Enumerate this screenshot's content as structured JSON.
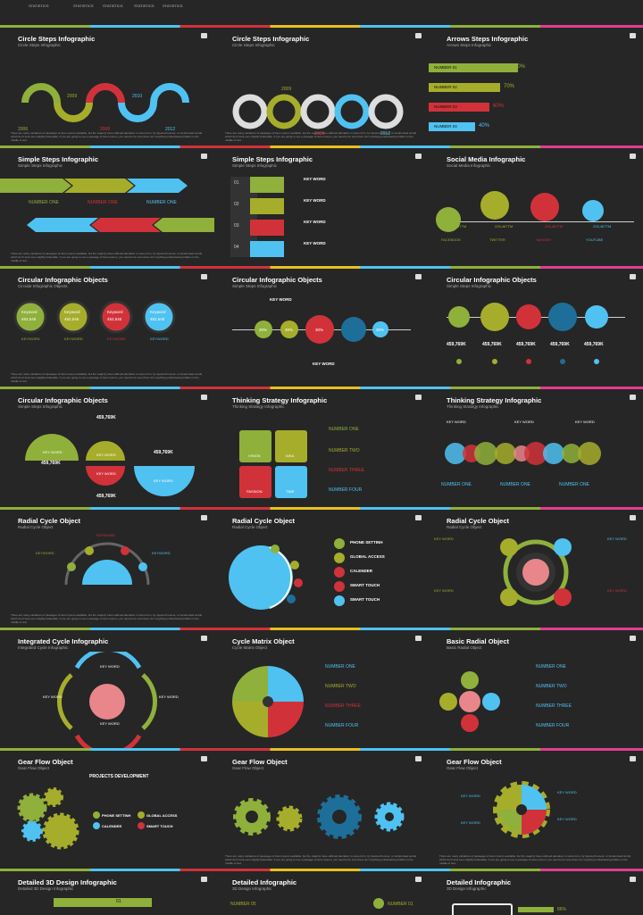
{
  "top": {
    "labels": [
      "STATISTICS",
      "STATISTICS",
      "STATISTICS",
      "STATISTICS",
      "STATISTICS"
    ]
  },
  "rows": [
    [
      {
        "title": "Circle Steps Infographic",
        "sub": "Circle Steps Infographic"
      },
      {
        "title": "Circle Steps Infographic",
        "sub": "Circle Steps Infographic"
      },
      {
        "title": "Arrows Steps Infographic",
        "sub": "Arrows Steps Infographic"
      }
    ],
    [
      {
        "title": "Simple Steps Infographic",
        "sub": "Simple Steps Infographic"
      },
      {
        "title": "Simple Steps Infographic",
        "sub": "Simple Steps Infographic"
      },
      {
        "title": "Social Media Infographic",
        "sub": "Social Media Infographic"
      }
    ],
    [
      {
        "title": "Circular Infographic Objects",
        "sub": "Circular Infographic Objects"
      },
      {
        "title": "Circular Infographic Objects",
        "sub": "Simple Steps Infographic"
      },
      {
        "title": "Circular Infographic Objects",
        "sub": "Simple Steps Infographic"
      }
    ],
    [
      {
        "title": "Circular Infographic Objects",
        "sub": "Simple Steps Infographic"
      },
      {
        "title": "Thinking Strategy Infographic",
        "sub": "Thinking Strategy Infographic"
      },
      {
        "title": "Thinking Strategy Infographic",
        "sub": "Thinking Strategy Infographic"
      }
    ],
    [
      {
        "title": "Radial Cycle Object",
        "sub": "Radial Cycle Object"
      },
      {
        "title": "Radial Cycle Object",
        "sub": "Radial Cycle Object"
      },
      {
        "title": "Radial Cycle Object",
        "sub": "Radial Cycle Object"
      }
    ],
    [
      {
        "title": "Integrated Cycle Infographic",
        "sub": "Integrated Cycle Infographic"
      },
      {
        "title": "Cycle Matrix Object",
        "sub": "Cycle Matrix Object"
      },
      {
        "title": "Basic Radial Object",
        "sub": "Basic Radial Object"
      }
    ],
    [
      {
        "title": "Gear Flow Object",
        "sub": "Gear Flow Object"
      },
      {
        "title": "Gear Flow Object",
        "sub": "Gear Flow Object"
      },
      {
        "title": "Gear Flow Object",
        "sub": "Gear Flow Object"
      }
    ],
    [
      {
        "title": "Detailed 3D Design Infographic",
        "sub": "Detailed 3D Design Infographic"
      },
      {
        "title": "Detailed Infographic",
        "sub": "3D Design Infographic"
      },
      {
        "title": "Detailed Infographic",
        "sub": "3D Design Infographic"
      }
    ]
  ],
  "text": {
    "years": [
      "2006",
      "2009",
      "2008",
      "2010",
      "2012"
    ],
    "statistics": "STATISTICS",
    "number_labels": [
      "NUMBER 01",
      "NUMBER 02",
      "NUMBER 03",
      "NUMBER 04"
    ],
    "percents": [
      "80%",
      "70%",
      "60%",
      "40%"
    ],
    "number_one": "NUMBER ONE",
    "number_two": "NUMBER TWO",
    "number_three": "NUMBER THREE",
    "number_four": "NUMBER FOUR",
    "key_word": "KEY WORD",
    "keyword": "KEYWORD",
    "keyword_cap": "Keyword",
    "kw_value": "452,545",
    "value_459": "459,769K",
    "value_459b": "459,769K",
    "social": [
      "FACEBOOK",
      "TWITTER",
      "YAHOOH",
      "YOUTUBE"
    ],
    "social_vals": [
      "226,467TM",
      "226,467TM",
      "226,467TM",
      "226,467TM"
    ],
    "quad": [
      "VISION",
      "IDEA",
      "PASSION",
      "TIME"
    ],
    "pcts30": [
      "30%",
      "30%",
      "30%",
      "30%"
    ],
    "radial_items": [
      "PHONE SETTINH",
      "GLOBAL ACCESS",
      "CALENDER",
      "SMART TOUCH",
      "SMART TOUCH"
    ],
    "gear_items": [
      "PROJECTS DEVELOPMENT",
      "PHONE SETTINH",
      "GLOBAL ACCESS",
      "CALENDER",
      "SMART TOUCH"
    ],
    "steps": [
      "01",
      "02",
      "03",
      "04"
    ],
    "detailed_nums": [
      "01",
      "NUMBER 05",
      "NUMBER 01"
    ],
    "pct86": "86%",
    "lorem": "There are many variations of passages of lorem ipsum available, but the majority have suffered alteration in some form, by injected humour, or randomised words which don't look even slightly believable. If you are going to use a passage of lorem ipsum, you need to be sure there isn't anything embarrassing hidden in the middle of text.",
    "short": "There are many variations of passages of lorem ipsum available."
  },
  "colors": {
    "green": "#8fb03b",
    "blue": "#4fc2f2",
    "red": "#d1323a",
    "olive": "#a6ad2b",
    "pink": "#e8868b"
  }
}
